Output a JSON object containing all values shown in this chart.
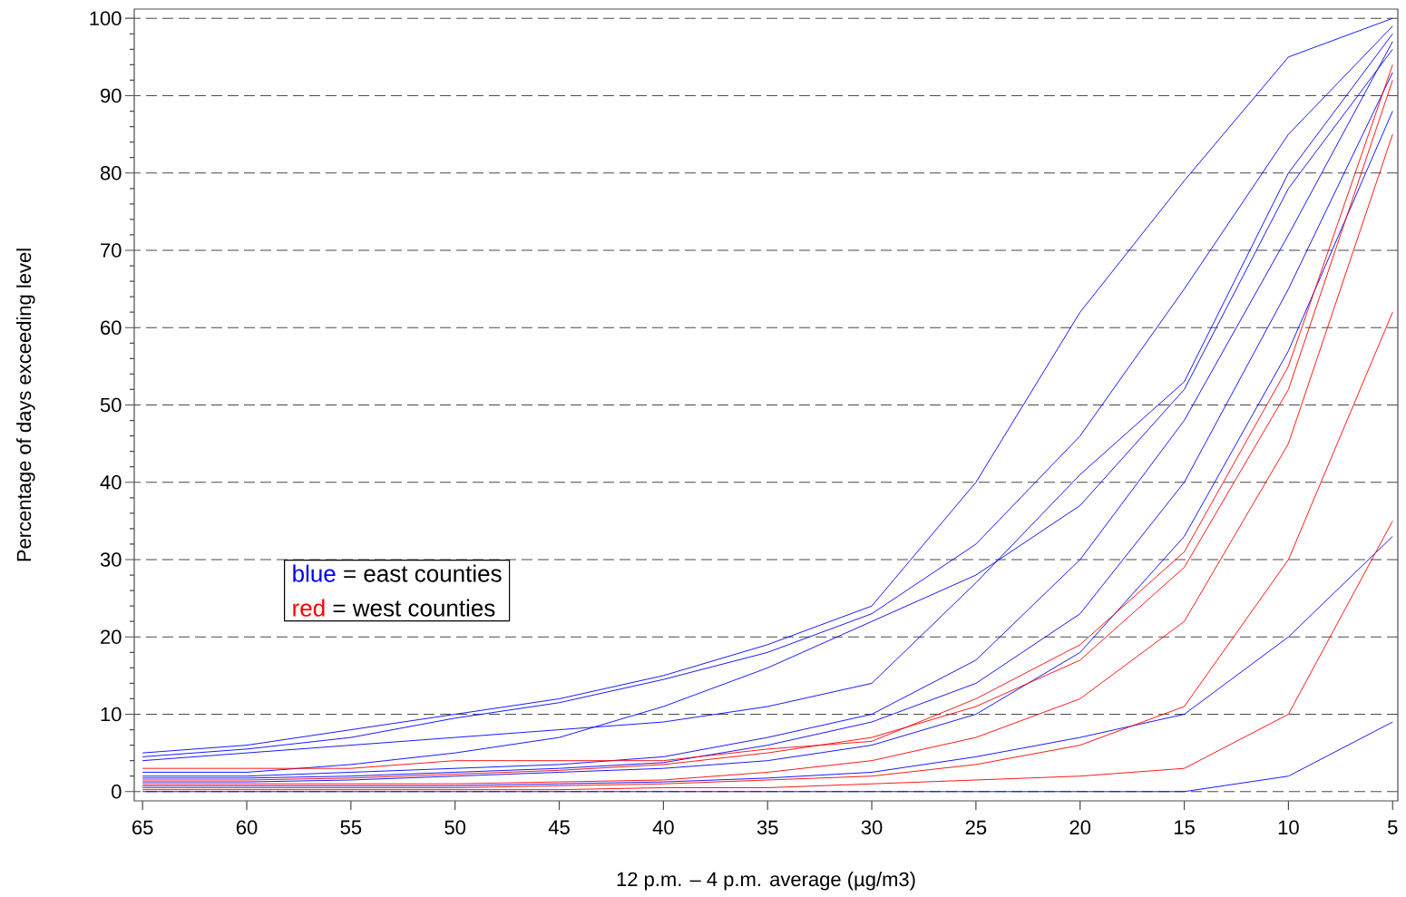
{
  "chart_data": {
    "type": "line",
    "xlabel": "12 p.m. – 4 p.m. average (µg/m3)",
    "ylabel": "Percentage of days exceeding level",
    "x": [
      65,
      60,
      55,
      50,
      45,
      40,
      35,
      30,
      25,
      20,
      15,
      10,
      5
    ],
    "xlim": [
      65.4,
      4.75
    ],
    "ylim": [
      -1.2,
      101.2
    ],
    "xticks": [
      65,
      60,
      55,
      50,
      45,
      40,
      35,
      30,
      25,
      20,
      15,
      10,
      5
    ],
    "yticks": [
      0,
      10,
      20,
      30,
      40,
      50,
      60,
      70,
      80,
      90,
      100
    ],
    "grid": "y",
    "marker": "none",
    "line_style": "solid",
    "annotations": [
      "blue",
      "= east counties",
      "red",
      "= west counties"
    ],
    "series": [
      {
        "color": "#0000ff",
        "values": [
          5,
          6,
          8,
          10,
          12,
          15,
          19,
          24,
          40,
          62,
          79,
          95,
          100
        ]
      },
      {
        "color": "#0000ff",
        "values": [
          4.5,
          5.5,
          7,
          9.5,
          11.5,
          14.5,
          18,
          23,
          32,
          46,
          65,
          85,
          99
        ]
      },
      {
        "color": "#0000ff",
        "values": [
          4,
          5,
          6,
          7,
          8,
          9,
          11,
          14,
          27,
          41,
          53,
          80,
          98
        ]
      },
      {
        "color": "#0000ff",
        "values": [
          2.5,
          2.5,
          3.5,
          5,
          7,
          11,
          16,
          22,
          28,
          37,
          52,
          78,
          96
        ]
      },
      {
        "color": "#0000ff",
        "values": [
          2,
          2,
          2.5,
          3,
          3.5,
          4.5,
          7,
          10,
          17,
          30,
          48,
          72,
          97
        ]
      },
      {
        "color": "#0000ff",
        "values": [
          1.75,
          1.75,
          2,
          2.5,
          3,
          3.75,
          6,
          9,
          14,
          23,
          40,
          65,
          93
        ]
      },
      {
        "color": "#0000ff",
        "values": [
          1.25,
          1.25,
          1.5,
          2,
          2.5,
          3,
          4,
          6,
          10,
          18,
          33,
          57,
          88
        ]
      },
      {
        "color": "#0000ff",
        "values": [
          0.75,
          0.75,
          0.75,
          0.75,
          1,
          1.25,
          1.75,
          2.5,
          4.5,
          7,
          10,
          20,
          33
        ]
      },
      {
        "color": "#0000ff",
        "values": [
          0,
          0,
          0,
          0,
          0,
          0,
          0,
          0,
          0,
          0,
          0,
          2,
          9
        ]
      },
      {
        "color": "#ff0000",
        "values": [
          3,
          3,
          3,
          4,
          4,
          4,
          5.5,
          6.5,
          12,
          19,
          31,
          55,
          94
        ]
      },
      {
        "color": "#ff0000",
        "values": [
          1.5,
          1.5,
          1.75,
          2.25,
          2.75,
          3.5,
          5,
          7,
          11,
          17,
          29,
          52,
          92
        ]
      },
      {
        "color": "#ff0000",
        "values": [
          1,
          1,
          1,
          1,
          1.25,
          1.5,
          2.5,
          4,
          7,
          12,
          22,
          45,
          85
        ]
      },
      {
        "color": "#ff0000",
        "values": [
          0.5,
          0.5,
          0.5,
          0.5,
          0.75,
          1,
          1.5,
          2,
          3.5,
          6,
          11,
          30,
          62
        ]
      },
      {
        "color": "#ff0000",
        "values": [
          0.25,
          0.25,
          0.25,
          0.25,
          0.25,
          0.5,
          0.5,
          1,
          1.5,
          2,
          3,
          10,
          35
        ]
      }
    ]
  }
}
